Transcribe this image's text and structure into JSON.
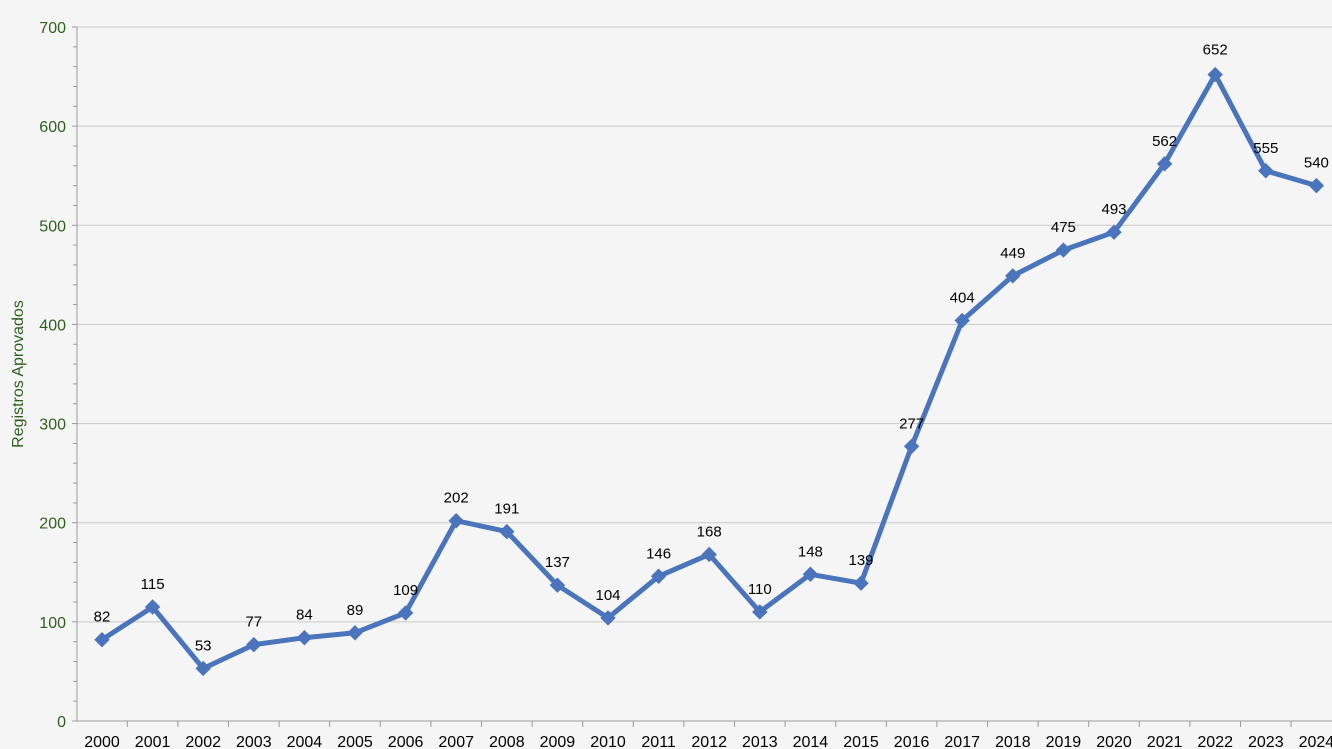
{
  "colors": {
    "background": "#f5f5f5",
    "series": "#4a74bb",
    "grid": "#c9c9c9",
    "axis": "#9a9a9a",
    "y_tick_text": "#2f5f1f",
    "x_tick_text": "#000000",
    "data_label": "#000000"
  },
  "chart_data": {
    "type": "line",
    "title": "",
    "xlabel": "",
    "ylabel": "Registros Aprovados",
    "categories": [
      "2000",
      "2001",
      "2002",
      "2003",
      "2004",
      "2005",
      "2006",
      "2007",
      "2008",
      "2009",
      "2010",
      "2011",
      "2012",
      "2013",
      "2014",
      "2015",
      "2016",
      "2017",
      "2018",
      "2019",
      "2020",
      "2021",
      "2022",
      "2023",
      "2024"
    ],
    "series": [
      {
        "values": [
          82,
          115,
          53,
          77,
          84,
          89,
          109,
          202,
          191,
          137,
          104,
          146,
          168,
          110,
          148,
          139,
          277,
          404,
          449,
          475,
          493,
          562,
          652,
          555,
          540
        ]
      }
    ],
    "data_labels": [
      "82",
      "115",
      "53",
      "77",
      "84",
      "89",
      "109",
      "202",
      "191",
      "137",
      "104",
      "146",
      "168",
      "110",
      "148",
      "139",
      "277",
      "404",
      "449",
      "475",
      "493",
      "562",
      "652",
      "555",
      "540"
    ],
    "ylim": [
      0,
      700
    ],
    "yticks": [
      "0",
      "100",
      "200",
      "300",
      "400",
      "500",
      "600",
      "700"
    ],
    "grid": true,
    "marker": "diamond",
    "legend": "none"
  }
}
